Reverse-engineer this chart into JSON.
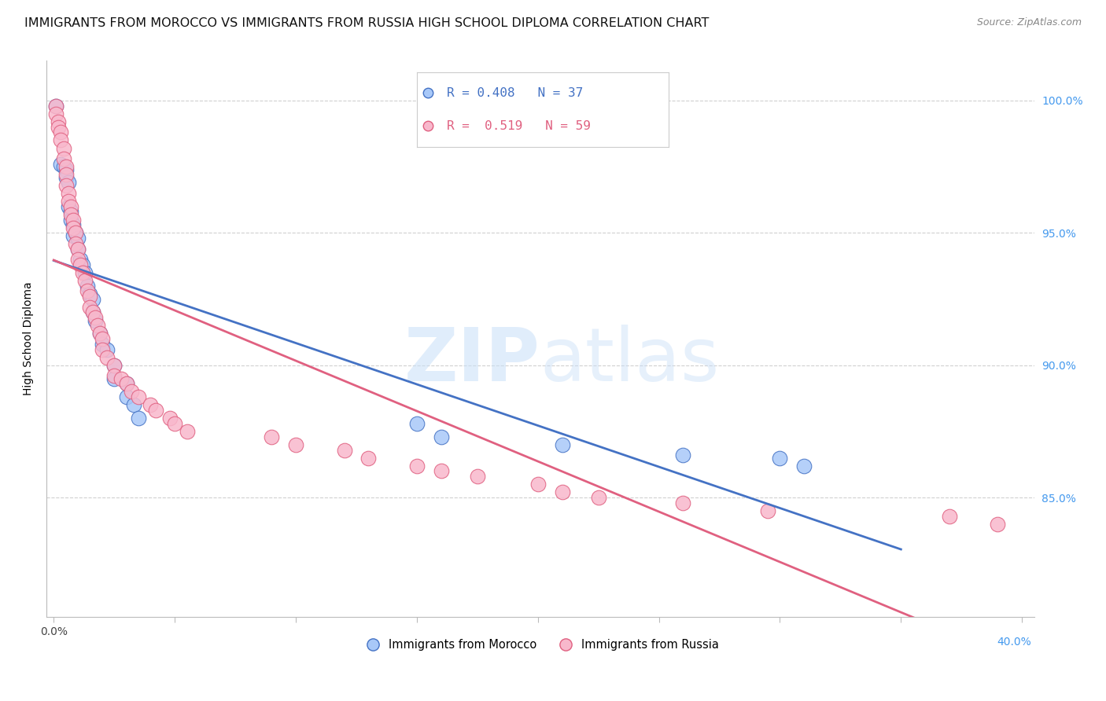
{
  "title": "IMMIGRANTS FROM MOROCCO VS IMMIGRANTS FROM RUSSIA HIGH SCHOOL DIPLOMA CORRELATION CHART",
  "source": "Source: ZipAtlas.com",
  "ylabel": "High School Diploma",
  "xlim": [
    -0.003,
    0.405
  ],
  "ylim": [
    0.805,
    1.015
  ],
  "yticks": [
    0.85,
    0.9,
    0.95,
    1.0
  ],
  "ytick_labels": [
    "85.0%",
    "90.0%",
    "95.0%",
    "100.0%"
  ],
  "xticks": [
    0.0,
    0.05,
    0.1,
    0.15,
    0.2,
    0.25,
    0.3,
    0.35,
    0.4
  ],
  "legend_morocco": "Immigrants from Morocco",
  "legend_russia": "Immigrants from Russia",
  "R_morocco": 0.408,
  "N_morocco": 37,
  "R_russia": 0.519,
  "N_russia": 59,
  "color_morocco": "#a8c8f8",
  "color_russia": "#f8b8cc",
  "line_color_morocco": "#4472c4",
  "line_color_russia": "#e06080",
  "background_color": "#ffffff",
  "grid_color": "#d0d0d0",
  "watermark_zip": "ZIP",
  "watermark_atlas": "atlas",
  "title_fontsize": 11.5,
  "axis_label_fontsize": 10,
  "tick_fontsize": 10,
  "right_tick_color": "#4499ee",
  "morocco_x": [
    0.001,
    0.003,
    0.004,
    0.005,
    0.005,
    0.006,
    0.006,
    0.007,
    0.007,
    0.008,
    0.008,
    0.009,
    0.01,
    0.01,
    0.011,
    0.012,
    0.013,
    0.014,
    0.015,
    0.016,
    0.016,
    0.017,
    0.019,
    0.02,
    0.022,
    0.025,
    0.025,
    0.03,
    0.03,
    0.033,
    0.035,
    0.15,
    0.16,
    0.21,
    0.26,
    0.3,
    0.31
  ],
  "morocco_y": [
    0.998,
    0.976,
    0.975,
    0.974,
    0.971,
    0.969,
    0.96,
    0.958,
    0.955,
    0.953,
    0.949,
    0.95,
    0.948,
    0.944,
    0.94,
    0.938,
    0.935,
    0.93,
    0.927,
    0.925,
    0.92,
    0.917,
    0.912,
    0.908,
    0.906,
    0.9,
    0.895,
    0.893,
    0.888,
    0.885,
    0.88,
    0.878,
    0.873,
    0.87,
    0.866,
    0.865,
    0.862
  ],
  "russia_x": [
    0.001,
    0.001,
    0.002,
    0.002,
    0.003,
    0.003,
    0.004,
    0.004,
    0.005,
    0.005,
    0.005,
    0.006,
    0.006,
    0.007,
    0.007,
    0.008,
    0.008,
    0.009,
    0.009,
    0.01,
    0.01,
    0.011,
    0.012,
    0.013,
    0.014,
    0.015,
    0.015,
    0.016,
    0.017,
    0.018,
    0.019,
    0.02,
    0.02,
    0.022,
    0.025,
    0.025,
    0.028,
    0.03,
    0.032,
    0.035,
    0.04,
    0.042,
    0.048,
    0.05,
    0.055,
    0.09,
    0.1,
    0.12,
    0.13,
    0.15,
    0.16,
    0.175,
    0.2,
    0.21,
    0.225,
    0.26,
    0.295,
    0.37,
    0.39
  ],
  "russia_y": [
    0.998,
    0.995,
    0.992,
    0.99,
    0.988,
    0.985,
    0.982,
    0.978,
    0.975,
    0.972,
    0.968,
    0.965,
    0.962,
    0.96,
    0.957,
    0.955,
    0.952,
    0.95,
    0.946,
    0.944,
    0.94,
    0.938,
    0.935,
    0.932,
    0.928,
    0.926,
    0.922,
    0.92,
    0.918,
    0.915,
    0.912,
    0.91,
    0.906,
    0.903,
    0.9,
    0.896,
    0.895,
    0.893,
    0.89,
    0.888,
    0.885,
    0.883,
    0.88,
    0.878,
    0.875,
    0.873,
    0.87,
    0.868,
    0.865,
    0.862,
    0.86,
    0.858,
    0.855,
    0.852,
    0.85,
    0.848,
    0.845,
    0.843,
    0.84
  ]
}
